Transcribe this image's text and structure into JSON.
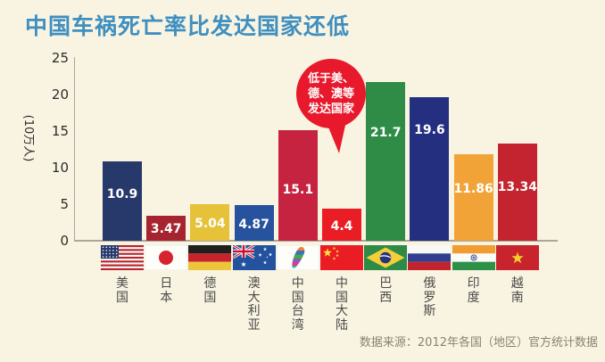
{
  "page": {
    "title": "中国车祸死亡率比发达国家还低",
    "title_color": "#3f8fc0",
    "background": "#f9f4e2",
    "source": "数据来源：2012年各国（地区）官方统计数据"
  },
  "callout": {
    "text": "低于美、德、澳等发达国家",
    "lines": [
      "低于美、",
      "德、澳等",
      "发达国家"
    ],
    "bubble_color": "#e8192c",
    "text_color": "#ffffff"
  },
  "axis": {
    "line_color": "#aaa69b",
    "tick_color": "#2b2b2b"
  },
  "chart_data": {
    "type": "bar",
    "title": "中国车祸死亡率比发达国家还低",
    "xlabel": "",
    "ylabel": "(10万人)",
    "ylim": [
      0,
      25
    ],
    "yticks": [
      0,
      5,
      10,
      15,
      20,
      25
    ],
    "grid": false,
    "legend": false,
    "categories": [
      "美国",
      "日本",
      "德国",
      "澳大利亚",
      "中国台湾",
      "中国大陆",
      "巴西",
      "俄罗斯",
      "印度",
      "越南"
    ],
    "values": [
      10.9,
      3.47,
      5.04,
      4.87,
      15.1,
      4.4,
      21.7,
      19.6,
      11.86,
      13.34
    ],
    "value_labels": [
      "10.9",
      "3.47",
      "5.04",
      "4.87",
      "15.1",
      "4.4",
      "21.7",
      "19.6",
      "11.86",
      "13.34"
    ],
    "bar_colors": [
      "#27396b",
      "#a6242f",
      "#e5c238",
      "#27539e",
      "#c52340",
      "#ea1d25",
      "#2e8c47",
      "#242f80",
      "#f2a338",
      "#c3242f"
    ],
    "flag_icons": [
      "usa-flag",
      "japan-flag",
      "germany-flag",
      "australia-flag",
      "taiwan-map",
      "china-flag",
      "brazil-flag",
      "russia-flag",
      "india-flag",
      "vietnam-flag"
    ],
    "annotation": "低于美、德、澳等发达国家"
  }
}
